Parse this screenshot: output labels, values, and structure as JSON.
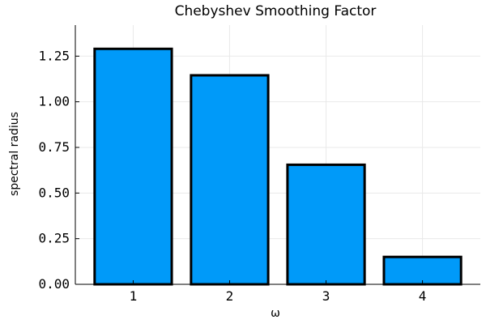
{
  "chart_data": {
    "type": "bar",
    "title": "Chebyshev Smoothing Factor",
    "xlabel": "ω",
    "ylabel": "spectral radius",
    "categories": [
      "1",
      "2",
      "3",
      "4"
    ],
    "values": [
      1.29,
      1.145,
      0.655,
      0.15
    ],
    "ylim": [
      0,
      1.42
    ],
    "xlim": [
      0.4,
      4.6
    ],
    "yticks": [
      0.0,
      0.25,
      0.5,
      0.75,
      1.0,
      1.25
    ],
    "ytick_labels": [
      "0.00",
      "0.25",
      "0.50",
      "0.75",
      "1.00",
      "1.25"
    ],
    "grid": true,
    "legend": "none",
    "colors": {
      "bar_fill": "#009af9",
      "bar_stroke": "#000000",
      "grid": "#e9e9e9",
      "axis": "#000000"
    }
  }
}
